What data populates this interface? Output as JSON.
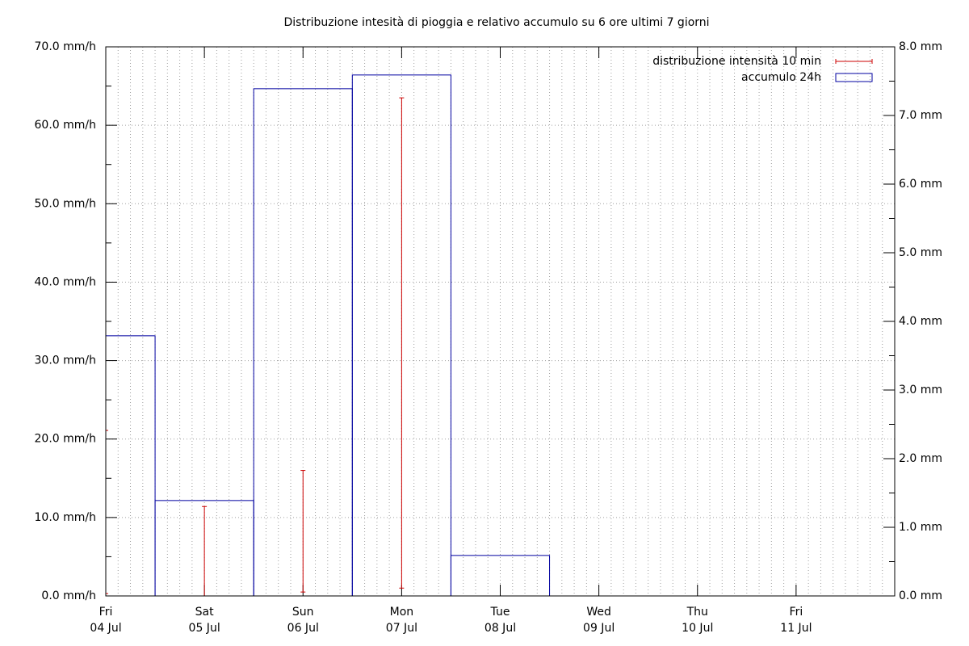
{
  "chart_data": {
    "type": "boxes-errorbars",
    "title": "Distribuzione intesità di pioggia e relativo accumulo su 6 ore ultimi 7 giorni",
    "xlim": [
      "07-04",
      "07-12"
    ],
    "xticks": [
      {
        "value": "07-04",
        "weekday": "Fri",
        "label": "04 Jul"
      },
      {
        "value": "07-05",
        "weekday": "Sat",
        "label": "05 Jul"
      },
      {
        "value": "07-06",
        "weekday": "Sun",
        "label": "06 Jul"
      },
      {
        "value": "07-07",
        "weekday": "Mon",
        "label": "07 Jul"
      },
      {
        "value": "07-08",
        "weekday": "Tue",
        "label": "08 Jul"
      },
      {
        "value": "07-09",
        "weekday": "Wed",
        "label": "09 Jul"
      },
      {
        "value": "07-10",
        "weekday": "Thu",
        "label": "10 Jul"
      },
      {
        "value": "07-11",
        "weekday": "Fri",
        "label": "11 Jul"
      }
    ],
    "ylim": [
      0,
      70
    ],
    "yticks": [
      {
        "value": 0,
        "label": "0.0 mm/h"
      },
      {
        "value": 10,
        "label": "10.0 mm/h"
      },
      {
        "value": 20,
        "label": "20.0 mm/h"
      },
      {
        "value": 30,
        "label": "30.0 mm/h"
      },
      {
        "value": 40,
        "label": "40.0 mm/h"
      },
      {
        "value": 50,
        "label": "50.0 mm/h"
      },
      {
        "value": 60,
        "label": "60.0 mm/h"
      },
      {
        "value": 70,
        "label": "70.0 mm/h"
      }
    ],
    "y2lim": [
      0,
      8
    ],
    "y2ticks": [
      {
        "value": 0,
        "label": "0.0 mm"
      },
      {
        "value": 1,
        "label": "1.0 mm"
      },
      {
        "value": 2,
        "label": "2.0 mm"
      },
      {
        "value": 3,
        "label": "3.0 mm"
      },
      {
        "value": 4,
        "label": "4.0 mm"
      },
      {
        "value": 5,
        "label": "5.0 mm"
      },
      {
        "value": 6,
        "label": "6.0 mm"
      },
      {
        "value": 7,
        "label": "7.0 mm"
      },
      {
        "value": 8,
        "label": "8.0 mm"
      }
    ],
    "grid": true,
    "legend": "top-right",
    "series": [
      {
        "name": "distribuzione intensità 10 min",
        "type": "errorbar",
        "color": "#cc0000",
        "x": [
          "07-04",
          "07-05",
          "07-06",
          "07-07"
        ],
        "values": [
          21.1,
          11.4,
          16.0,
          63.5
        ],
        "low": [
          0.3,
          0,
          0.5,
          1.0
        ]
      },
      {
        "name": "accumulo 24h",
        "type": "box",
        "color": "#0000a0",
        "axis": "y2",
        "x": [
          "07-04",
          "07-05",
          "07-06",
          "07-07",
          "07-08"
        ],
        "values": [
          3.79,
          1.39,
          7.39,
          7.59,
          0.59
        ]
      }
    ]
  }
}
